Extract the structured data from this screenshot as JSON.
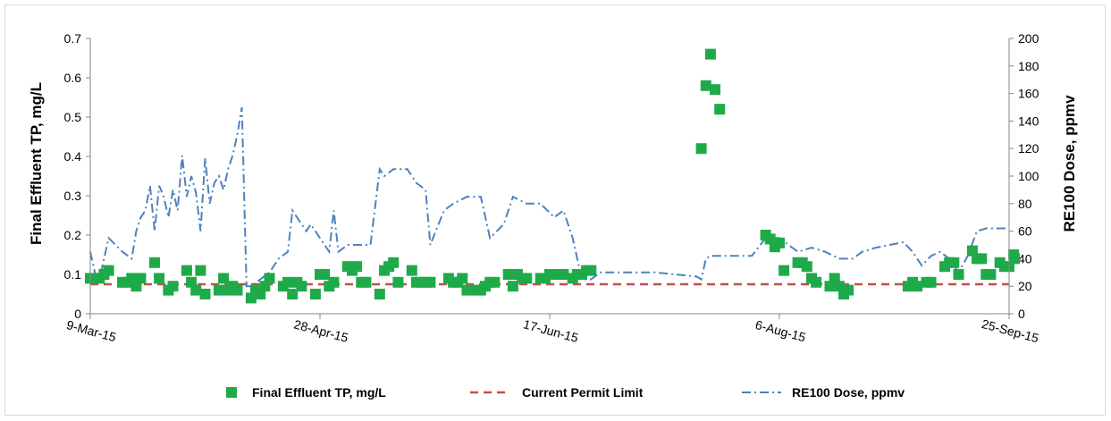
{
  "chart_data": {
    "type": "scatter",
    "title": "",
    "x_axis": {
      "type": "date",
      "min": "2015-03-09",
      "max": "2015-09-25",
      "tick_dates": [
        "2015-03-09",
        "2015-04-28",
        "2015-06-17",
        "2015-08-06",
        "2015-09-25"
      ],
      "tick_labels": [
        "9-Mar-15",
        "28-Apr-15",
        "17-Jun-15",
        "6-Aug-15",
        "25-Sep-15"
      ]
    },
    "y_left": {
      "label": "Final Effluent TP, mg/L",
      "min": 0,
      "max": 0.7,
      "step": 0.1,
      "tick_labels": [
        "0",
        "0.1",
        "0.2",
        "0.3",
        "0.4",
        "0.5",
        "0.6",
        "0.7"
      ]
    },
    "y_right": {
      "label": "RE100 Dose, ppmv",
      "min": 0,
      "max": 200,
      "step": 20,
      "tick_labels": [
        "0",
        "20",
        "40",
        "60",
        "80",
        "100",
        "120",
        "140",
        "160",
        "180",
        "200"
      ]
    },
    "grid": false,
    "legend_position": "bottom",
    "series": [
      {
        "name": "Final Effluent TP, mg/L",
        "kind": "scatter",
        "marker": "square",
        "color": "#1faa4a",
        "axis": "left",
        "points": [
          [
            "2015-03-09",
            0.09
          ],
          [
            "2015-03-10",
            0.09
          ],
          [
            "2015-03-11",
            0.09
          ],
          [
            "2015-03-12",
            0.1
          ],
          [
            "2015-03-13",
            0.11
          ],
          [
            "2015-03-16",
            0.08
          ],
          [
            "2015-03-17",
            0.08
          ],
          [
            "2015-03-18",
            0.09
          ],
          [
            "2015-03-19",
            0.07
          ],
          [
            "2015-03-20",
            0.09
          ],
          [
            "2015-03-23",
            0.13
          ],
          [
            "2015-03-24",
            0.09
          ],
          [
            "2015-03-26",
            0.06
          ],
          [
            "2015-03-27",
            0.07
          ],
          [
            "2015-03-30",
            0.11
          ],
          [
            "2015-03-31",
            0.08
          ],
          [
            "2015-04-01",
            0.06
          ],
          [
            "2015-04-02",
            0.11
          ],
          [
            "2015-04-03",
            0.05
          ],
          [
            "2015-04-06",
            0.06
          ],
          [
            "2015-04-07",
            0.09
          ],
          [
            "2015-04-08",
            0.06
          ],
          [
            "2015-04-09",
            0.07
          ],
          [
            "2015-04-10",
            0.06
          ],
          [
            "2015-04-13",
            0.04
          ],
          [
            "2015-04-14",
            0.06
          ],
          [
            "2015-04-15",
            0.05
          ],
          [
            "2015-04-16",
            0.07
          ],
          [
            "2015-04-17",
            0.09
          ],
          [
            "2015-04-20",
            0.07
          ],
          [
            "2015-04-21",
            0.08
          ],
          [
            "2015-04-22",
            0.05
          ],
          [
            "2015-04-23",
            0.08
          ],
          [
            "2015-04-24",
            0.07
          ],
          [
            "2015-04-27",
            0.05
          ],
          [
            "2015-04-28",
            0.1
          ],
          [
            "2015-04-29",
            0.1
          ],
          [
            "2015-04-30",
            0.07
          ],
          [
            "2015-05-01",
            0.08
          ],
          [
            "2015-05-04",
            0.12
          ],
          [
            "2015-05-05",
            0.11
          ],
          [
            "2015-05-06",
            0.12
          ],
          [
            "2015-05-07",
            0.08
          ],
          [
            "2015-05-08",
            0.08
          ],
          [
            "2015-05-11",
            0.05
          ],
          [
            "2015-05-12",
            0.11
          ],
          [
            "2015-05-13",
            0.12
          ],
          [
            "2015-05-14",
            0.13
          ],
          [
            "2015-05-15",
            0.08
          ],
          [
            "2015-05-18",
            0.11
          ],
          [
            "2015-05-19",
            0.08
          ],
          [
            "2015-05-20",
            0.08
          ],
          [
            "2015-05-21",
            0.08
          ],
          [
            "2015-05-22",
            0.08
          ],
          [
            "2015-05-26",
            0.09
          ],
          [
            "2015-05-27",
            0.08
          ],
          [
            "2015-05-28",
            0.08
          ],
          [
            "2015-05-29",
            0.09
          ],
          [
            "2015-05-30",
            0.06
          ],
          [
            "2015-06-01",
            0.06
          ],
          [
            "2015-06-02",
            0.06
          ],
          [
            "2015-06-03",
            0.07
          ],
          [
            "2015-06-04",
            0.08
          ],
          [
            "2015-06-05",
            0.08
          ],
          [
            "2015-06-08",
            0.1
          ],
          [
            "2015-06-09",
            0.07
          ],
          [
            "2015-06-10",
            0.1
          ],
          [
            "2015-06-11",
            0.09
          ],
          [
            "2015-06-12",
            0.09
          ],
          [
            "2015-06-15",
            0.09
          ],
          [
            "2015-06-16",
            0.09
          ],
          [
            "2015-06-17",
            0.1
          ],
          [
            "2015-06-18",
            0.1
          ],
          [
            "2015-06-19",
            0.1
          ],
          [
            "2015-06-20",
            0.1
          ],
          [
            "2015-06-22",
            0.09
          ],
          [
            "2015-06-23",
            0.1
          ],
          [
            "2015-06-24",
            0.1
          ],
          [
            "2015-06-25",
            0.11
          ],
          [
            "2015-06-26",
            0.11
          ],
          [
            "2015-07-20",
            0.42
          ],
          [
            "2015-07-21",
            0.58
          ],
          [
            "2015-07-22",
            0.66
          ],
          [
            "2015-07-23",
            0.57
          ],
          [
            "2015-07-24",
            0.52
          ],
          [
            "2015-08-03",
            0.2
          ],
          [
            "2015-08-04",
            0.19
          ],
          [
            "2015-08-05",
            0.17
          ],
          [
            "2015-08-06",
            0.18
          ],
          [
            "2015-08-07",
            0.11
          ],
          [
            "2015-08-10",
            0.13
          ],
          [
            "2015-08-11",
            0.13
          ],
          [
            "2015-08-12",
            0.12
          ],
          [
            "2015-08-13",
            0.09
          ],
          [
            "2015-08-14",
            0.08
          ],
          [
            "2015-08-17",
            0.07
          ],
          [
            "2015-08-18",
            0.09
          ],
          [
            "2015-08-19",
            0.07
          ],
          [
            "2015-08-20",
            0.05
          ],
          [
            "2015-08-21",
            0.06
          ],
          [
            "2015-09-03",
            0.07
          ],
          [
            "2015-09-04",
            0.08
          ],
          [
            "2015-09-05",
            0.07
          ],
          [
            "2015-09-07",
            0.08
          ],
          [
            "2015-09-08",
            0.08
          ],
          [
            "2015-09-11",
            0.12
          ],
          [
            "2015-09-12",
            0.13
          ],
          [
            "2015-09-13",
            0.13
          ],
          [
            "2015-09-14",
            0.1
          ],
          [
            "2015-09-17",
            0.16
          ],
          [
            "2015-09-18",
            0.14
          ],
          [
            "2015-09-19",
            0.14
          ],
          [
            "2015-09-20",
            0.1
          ],
          [
            "2015-09-21",
            0.1
          ],
          [
            "2015-09-23",
            0.13
          ],
          [
            "2015-09-24",
            0.12
          ],
          [
            "2015-09-25",
            0.12
          ],
          [
            "2015-09-26",
            0.15
          ],
          [
            "2015-09-27",
            0.14
          ]
        ]
      },
      {
        "name": "Current Permit Limit",
        "kind": "line",
        "dash": "dashed",
        "color": "#c0504d",
        "axis": "left",
        "points": [
          [
            "2015-03-09",
            0.075
          ],
          [
            "2015-09-25",
            0.075
          ]
        ]
      },
      {
        "name": "RE100 Dose, ppmv",
        "kind": "line",
        "dash": "dash-dot",
        "color": "#4f81bd",
        "axis": "right",
        "points": [
          [
            "2015-03-09",
            45
          ],
          [
            "2015-03-10",
            30
          ],
          [
            "2015-03-11",
            25
          ],
          [
            "2015-03-12",
            40
          ],
          [
            "2015-03-13",
            55
          ],
          [
            "2015-03-16",
            45
          ],
          [
            "2015-03-18",
            40
          ],
          [
            "2015-03-19",
            60
          ],
          [
            "2015-03-20",
            70
          ],
          [
            "2015-03-21",
            75
          ],
          [
            "2015-03-22",
            93
          ],
          [
            "2015-03-23",
            60
          ],
          [
            "2015-03-24",
            93
          ],
          [
            "2015-03-25",
            85
          ],
          [
            "2015-03-26",
            70
          ],
          [
            "2015-03-27",
            90
          ],
          [
            "2015-03-28",
            75
          ],
          [
            "2015-03-29",
            115
          ],
          [
            "2015-03-30",
            85
          ],
          [
            "2015-03-31",
            100
          ],
          [
            "2015-04-01",
            88
          ],
          [
            "2015-04-02",
            60
          ],
          [
            "2015-04-03",
            113
          ],
          [
            "2015-04-04",
            80
          ],
          [
            "2015-04-05",
            95
          ],
          [
            "2015-04-06",
            100
          ],
          [
            "2015-04-07",
            90
          ],
          [
            "2015-04-08",
            105
          ],
          [
            "2015-04-09",
            115
          ],
          [
            "2015-04-10",
            130
          ],
          [
            "2015-04-11",
            150
          ],
          [
            "2015-04-12",
            20
          ],
          [
            "2015-04-13",
            20
          ],
          [
            "2015-04-15",
            25
          ],
          [
            "2015-04-17",
            30
          ],
          [
            "2015-04-19",
            40
          ],
          [
            "2015-04-21",
            45
          ],
          [
            "2015-04-22",
            75
          ],
          [
            "2015-04-23",
            70
          ],
          [
            "2015-04-25",
            60
          ],
          [
            "2015-04-26",
            65
          ],
          [
            "2015-04-28",
            55
          ],
          [
            "2015-04-29",
            50
          ],
          [
            "2015-04-30",
            45
          ],
          [
            "2015-05-01",
            75
          ],
          [
            "2015-05-02",
            45
          ],
          [
            "2015-05-04",
            50
          ],
          [
            "2015-05-07",
            50
          ],
          [
            "2015-05-09",
            50
          ],
          [
            "2015-05-11",
            105
          ],
          [
            "2015-05-12",
            100
          ],
          [
            "2015-05-14",
            105
          ],
          [
            "2015-05-17",
            105
          ],
          [
            "2015-05-19",
            95
          ],
          [
            "2015-05-21",
            90
          ],
          [
            "2015-05-22",
            50
          ],
          [
            "2015-05-25",
            75
          ],
          [
            "2015-05-27",
            80
          ],
          [
            "2015-05-30",
            85
          ],
          [
            "2015-06-02",
            85
          ],
          [
            "2015-06-04",
            55
          ],
          [
            "2015-06-07",
            65
          ],
          [
            "2015-06-09",
            85
          ],
          [
            "2015-06-12",
            80
          ],
          [
            "2015-06-15",
            80
          ],
          [
            "2015-06-18",
            70
          ],
          [
            "2015-06-20",
            75
          ],
          [
            "2015-06-22",
            55
          ],
          [
            "2015-06-24",
            25
          ],
          [
            "2015-06-26",
            25
          ],
          [
            "2015-06-28",
            30
          ],
          [
            "2015-07-01",
            30
          ],
          [
            "2015-07-05",
            30
          ],
          [
            "2015-07-10",
            30
          ],
          [
            "2015-07-13",
            29
          ],
          [
            "2015-07-16",
            28
          ],
          [
            "2015-07-19",
            27
          ],
          [
            "2015-07-20",
            25
          ],
          [
            "2015-07-21",
            40
          ],
          [
            "2015-07-22",
            42
          ],
          [
            "2015-07-25",
            42
          ],
          [
            "2015-07-28",
            42
          ],
          [
            "2015-07-31",
            42
          ],
          [
            "2015-08-03",
            55
          ],
          [
            "2015-08-06",
            55
          ],
          [
            "2015-08-10",
            45
          ],
          [
            "2015-08-13",
            48
          ],
          [
            "2015-08-16",
            45
          ],
          [
            "2015-08-19",
            40
          ],
          [
            "2015-08-22",
            40
          ],
          [
            "2015-08-24",
            45
          ],
          [
            "2015-08-27",
            48
          ],
          [
            "2015-08-30",
            50
          ],
          [
            "2015-09-02",
            52
          ],
          [
            "2015-09-04",
            45
          ],
          [
            "2015-09-06",
            35
          ],
          [
            "2015-09-08",
            42
          ],
          [
            "2015-09-10",
            45
          ],
          [
            "2015-09-12",
            40
          ],
          [
            "2015-09-14",
            30
          ],
          [
            "2015-09-16",
            42
          ],
          [
            "2015-09-18",
            60
          ],
          [
            "2015-09-20",
            62
          ],
          [
            "2015-09-23",
            62
          ],
          [
            "2015-09-25",
            62
          ]
        ]
      }
    ]
  }
}
